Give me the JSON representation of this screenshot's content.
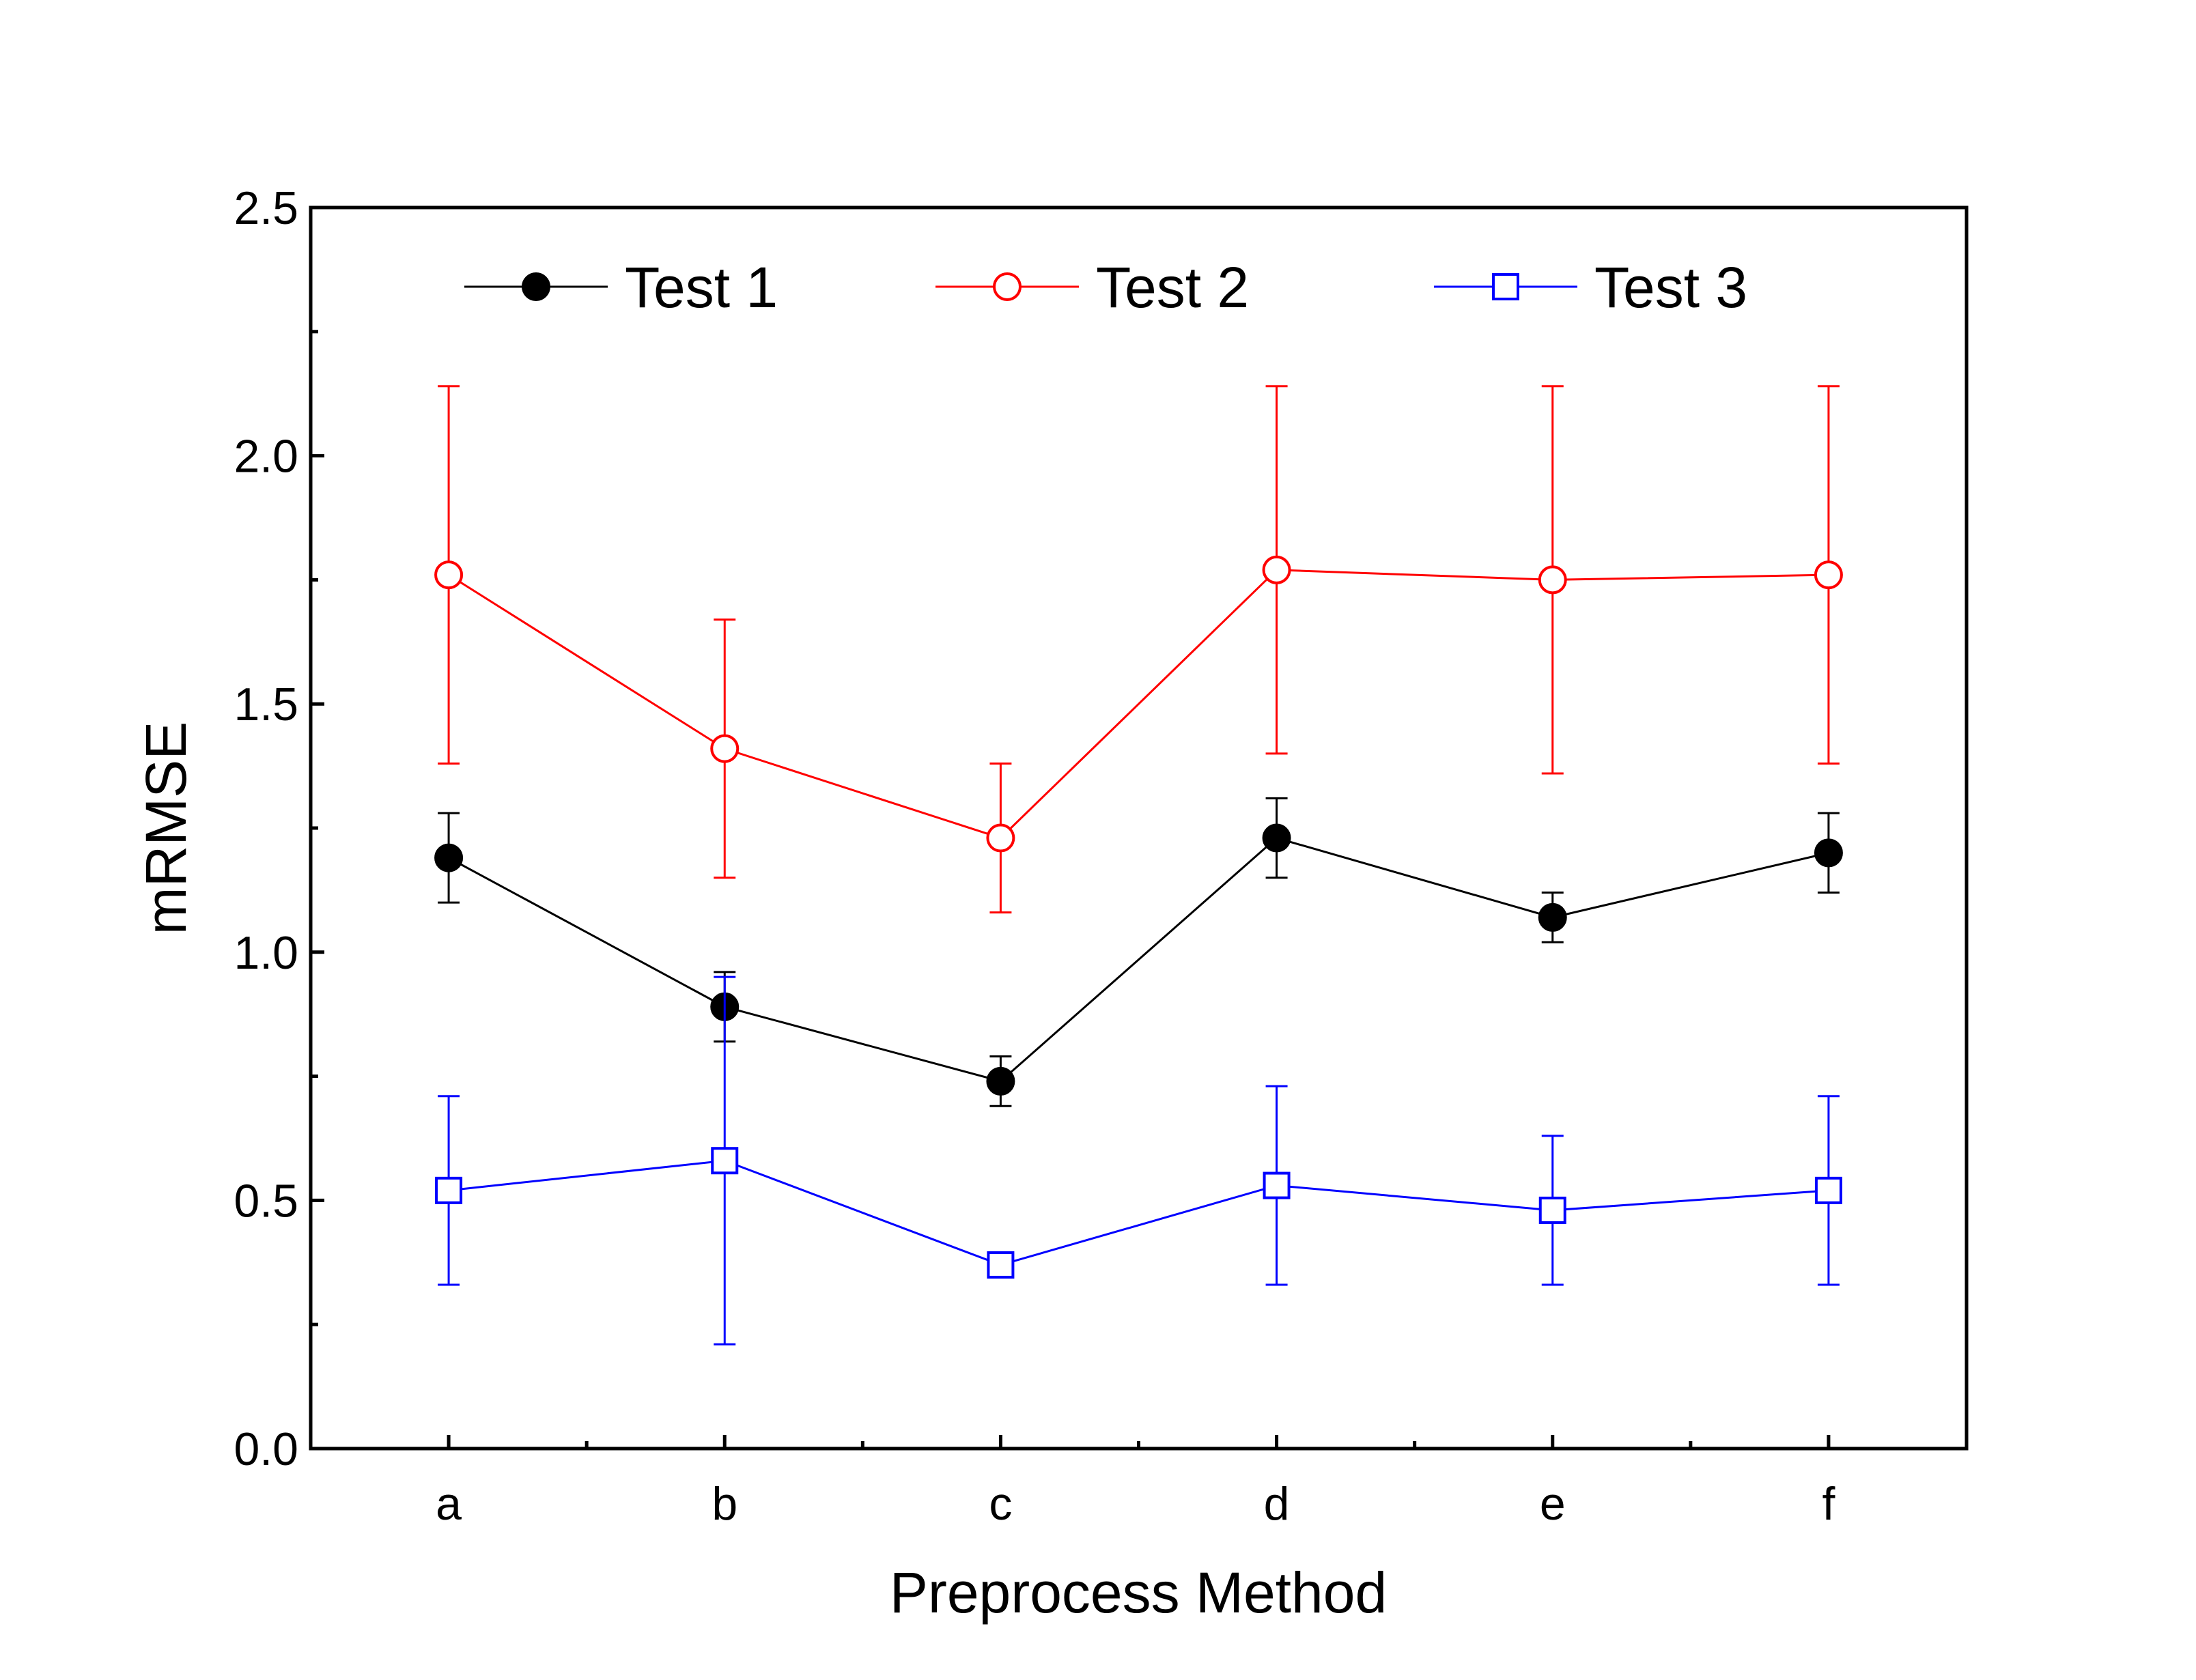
{
  "chart_data": {
    "type": "line",
    "title": "",
    "xlabel": "Preprocess Method",
    "ylabel": "mRMSE",
    "categories": [
      "a",
      "b",
      "c",
      "d",
      "e",
      "f"
    ],
    "ylim": [
      0.0,
      2.5
    ],
    "yticks": [
      "0.0",
      "0.5",
      "1.0",
      "1.5",
      "2.0",
      "2.5"
    ],
    "grid": false,
    "legend_position": "top",
    "series": [
      {
        "name": "Test 1",
        "color": "#000000",
        "marker": "filled-circle",
        "values": [
          1.19,
          0.89,
          0.74,
          1.23,
          1.07,
          1.2
        ],
        "errors": [
          0.09,
          0.07,
          0.05,
          0.08,
          0.05,
          0.08
        ]
      },
      {
        "name": "Test 2",
        "color": "#ff0000",
        "marker": "open-circle",
        "values": [
          1.76,
          1.41,
          1.23,
          1.77,
          1.75,
          1.76
        ],
        "errors": [
          0.38,
          0.26,
          0.15,
          0.37,
          0.39,
          0.38
        ]
      },
      {
        "name": "Test 3",
        "color": "#0000ff",
        "marker": "open-square",
        "values": [
          0.52,
          0.58,
          0.37,
          0.53,
          0.48,
          0.52
        ],
        "errors": [
          0.19,
          0.37,
          0.01,
          0.2,
          0.15,
          0.19
        ]
      }
    ]
  }
}
